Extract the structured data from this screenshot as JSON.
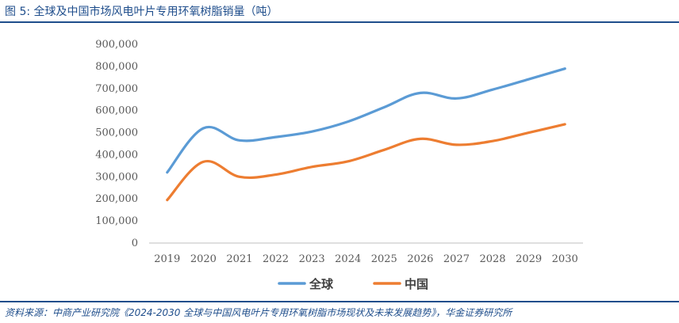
{
  "figure": {
    "label": "图 5:",
    "title": "全球及中国市场风电叶片专用环氧树脂销量（吨）",
    "source": "资料来源：中商产业研究院《2024-2030 全球与中国风电叶片专用环氧树脂市场现状及未来发展趋势》，华金证券研究所"
  },
  "colors": {
    "accent": "#1f4e8c",
    "global": "#5b9bd5",
    "china": "#ed7d31",
    "axis": "#bfbfbf"
  },
  "chart_data": {
    "type": "line",
    "title": "",
    "xlabel": "",
    "ylabel": "",
    "categories": [
      "2019",
      "2020",
      "2021",
      "2022",
      "2023",
      "2024",
      "2025",
      "2026",
      "2027",
      "2028",
      "2029",
      "2030"
    ],
    "ylim": [
      0,
      900000
    ],
    "yticks": [
      0,
      100000,
      200000,
      300000,
      400000,
      500000,
      600000,
      700000,
      800000,
      900000
    ],
    "ytick_labels": [
      "0",
      "100,000",
      "200,000",
      "300,000",
      "400,000",
      "500,000",
      "600,000",
      "700,000",
      "800,000",
      "900,000"
    ],
    "grid": false,
    "smooth": true,
    "legend_position": "bottom",
    "series": [
      {
        "name": "全球",
        "color": "#5b9bd5",
        "values": [
          320000,
          520000,
          465000,
          480000,
          505000,
          550000,
          615000,
          680000,
          655000,
          695000,
          742000,
          790000
        ]
      },
      {
        "name": "中国",
        "color": "#ed7d31",
        "values": [
          195000,
          368000,
          300000,
          310000,
          345000,
          370000,
          422000,
          472000,
          445000,
          462000,
          500000,
          538000
        ]
      }
    ]
  }
}
